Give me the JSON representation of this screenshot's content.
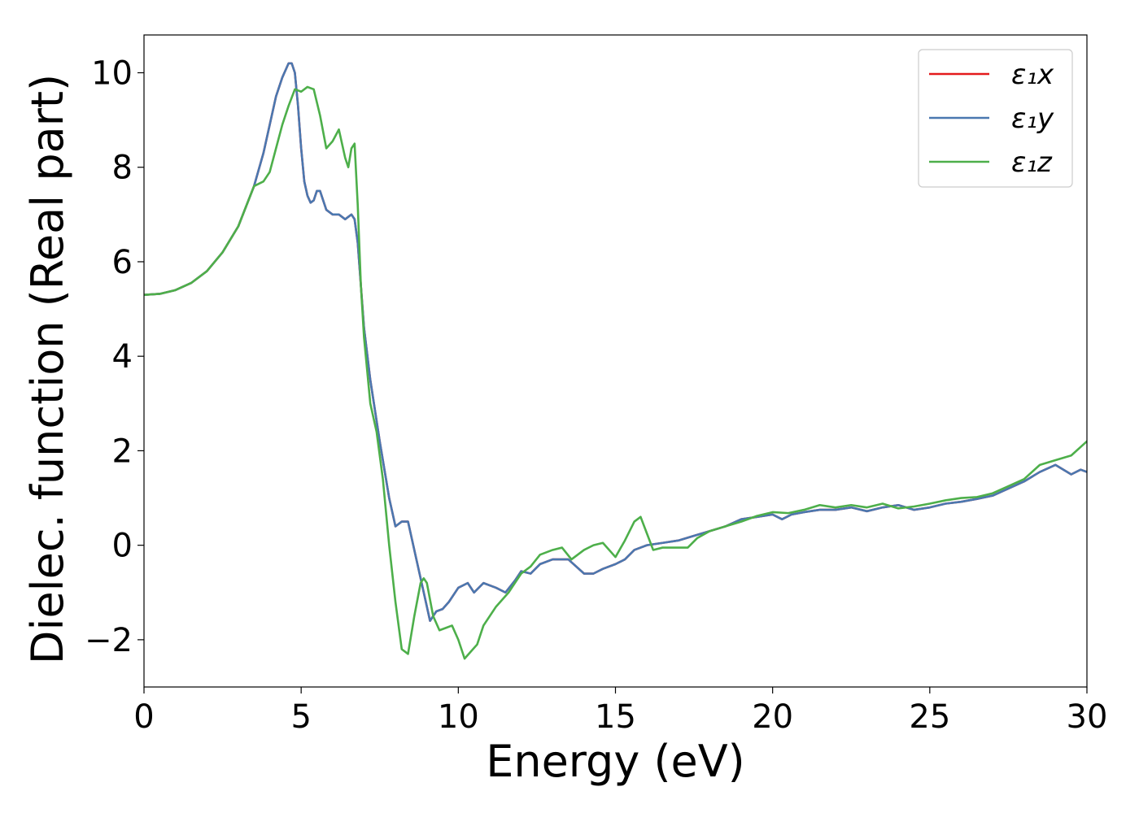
{
  "chart_data": {
    "type": "line",
    "title": "",
    "xlabel": "Energy (eV)",
    "ylabel": "Dielec. function (Real part)",
    "xlim": [
      0,
      30
    ],
    "ylim": [
      -3,
      10.8
    ],
    "xticks": [
      0,
      5,
      10,
      15,
      20,
      25,
      30
    ],
    "yticks": [
      -2,
      0,
      2,
      4,
      6,
      8,
      10
    ],
    "xtick_labels": [
      "0",
      "5",
      "10",
      "15",
      "20",
      "25",
      "30"
    ],
    "ytick_labels": [
      "−2",
      "0",
      "2",
      "4",
      "6",
      "8",
      "10"
    ],
    "grid": false,
    "legend_position": "top-right",
    "series": [
      {
        "name": "ε₁x",
        "color": "#e41a1c",
        "x": [
          0,
          0.5,
          1,
          1.5,
          2,
          2.5,
          3,
          3.5,
          3.8,
          4,
          4.2,
          4.4,
          4.6,
          4.7,
          4.8,
          4.9,
          5,
          5.1,
          5.2,
          5.3,
          5.4,
          5.5,
          5.6,
          5.7,
          5.8,
          6,
          6.2,
          6.4,
          6.6,
          6.7,
          6.8,
          7,
          7.2,
          7.5,
          7.8,
          8,
          8.2,
          8.4,
          8.5,
          8.7,
          8.9,
          9.1,
          9.3,
          9.5,
          9.7,
          10,
          10.3,
          10.5,
          10.8,
          11.2,
          11.5,
          11.8,
          12,
          12.3,
          12.6,
          13,
          13.5,
          14,
          14.3,
          14.6,
          15,
          15.3,
          15.6,
          16,
          16.5,
          17,
          17.5,
          18,
          18.5,
          19,
          19.5,
          20,
          20.3,
          20.6,
          21,
          21.5,
          22,
          22.5,
          23,
          23.5,
          24,
          24.5,
          25,
          25.5,
          26,
          26.5,
          27,
          27.5,
          28,
          28.5,
          29,
          29.5,
          29.8,
          30
        ],
        "y": [
          5.3,
          5.32,
          5.4,
          5.55,
          5.8,
          6.2,
          6.75,
          7.6,
          8.3,
          8.9,
          9.5,
          9.9,
          10.2,
          10.2,
          10.0,
          9.3,
          8.4,
          7.7,
          7.4,
          7.25,
          7.3,
          7.5,
          7.5,
          7.3,
          7.1,
          7.0,
          7.0,
          6.9,
          7.0,
          6.9,
          6.4,
          4.6,
          3.5,
          2.2,
          1.0,
          0.4,
          0.5,
          0.5,
          0.2,
          -0.4,
          -1.0,
          -1.6,
          -1.4,
          -1.35,
          -1.2,
          -0.9,
          -0.8,
          -1.0,
          -0.8,
          -0.9,
          -1.0,
          -0.75,
          -0.55,
          -0.6,
          -0.4,
          -0.3,
          -0.3,
          -0.6,
          -0.6,
          -0.5,
          -0.4,
          -0.3,
          -0.1,
          0.0,
          0.05,
          0.1,
          0.2,
          0.3,
          0.4,
          0.55,
          0.6,
          0.65,
          0.55,
          0.65,
          0.7,
          0.75,
          0.75,
          0.8,
          0.72,
          0.8,
          0.85,
          0.75,
          0.8,
          0.88,
          0.92,
          0.98,
          1.05,
          1.2,
          1.35,
          1.55,
          1.7,
          1.5,
          1.6,
          1.55
        ]
      },
      {
        "name": "ε₁y",
        "color": "#4a78b0",
        "x": [
          0,
          0.5,
          1,
          1.5,
          2,
          2.5,
          3,
          3.5,
          3.8,
          4,
          4.2,
          4.4,
          4.6,
          4.7,
          4.8,
          4.9,
          5,
          5.1,
          5.2,
          5.3,
          5.4,
          5.5,
          5.6,
          5.7,
          5.8,
          6,
          6.2,
          6.4,
          6.6,
          6.7,
          6.8,
          7,
          7.2,
          7.5,
          7.8,
          8,
          8.2,
          8.4,
          8.5,
          8.7,
          8.9,
          9.1,
          9.3,
          9.5,
          9.7,
          10,
          10.3,
          10.5,
          10.8,
          11.2,
          11.5,
          11.8,
          12,
          12.3,
          12.6,
          13,
          13.5,
          14,
          14.3,
          14.6,
          15,
          15.3,
          15.6,
          16,
          16.5,
          17,
          17.5,
          18,
          18.5,
          19,
          19.5,
          20,
          20.3,
          20.6,
          21,
          21.5,
          22,
          22.5,
          23,
          23.5,
          24,
          24.5,
          25,
          25.5,
          26,
          26.5,
          27,
          27.5,
          28,
          28.5,
          29,
          29.5,
          29.8,
          30
        ],
        "y": [
          5.3,
          5.32,
          5.4,
          5.55,
          5.8,
          6.2,
          6.75,
          7.6,
          8.3,
          8.9,
          9.5,
          9.9,
          10.2,
          10.2,
          10.0,
          9.3,
          8.4,
          7.7,
          7.4,
          7.25,
          7.3,
          7.5,
          7.5,
          7.3,
          7.1,
          7.0,
          7.0,
          6.9,
          7.0,
          6.9,
          6.4,
          4.6,
          3.5,
          2.2,
          1.0,
          0.4,
          0.5,
          0.5,
          0.2,
          -0.4,
          -1.0,
          -1.6,
          -1.4,
          -1.35,
          -1.2,
          -0.9,
          -0.8,
          -1.0,
          -0.8,
          -0.9,
          -1.0,
          -0.75,
          -0.55,
          -0.6,
          -0.4,
          -0.3,
          -0.3,
          -0.6,
          -0.6,
          -0.5,
          -0.4,
          -0.3,
          -0.1,
          0.0,
          0.05,
          0.1,
          0.2,
          0.3,
          0.4,
          0.55,
          0.6,
          0.65,
          0.55,
          0.65,
          0.7,
          0.75,
          0.75,
          0.8,
          0.72,
          0.8,
          0.85,
          0.75,
          0.8,
          0.88,
          0.92,
          0.98,
          1.05,
          1.2,
          1.35,
          1.55,
          1.7,
          1.5,
          1.6,
          1.55
        ]
      },
      {
        "name": "ε₁z",
        "color": "#4daf4a",
        "x": [
          0,
          0.5,
          1,
          1.5,
          2,
          2.5,
          3,
          3.5,
          3.8,
          4,
          4.2,
          4.4,
          4.6,
          4.8,
          5,
          5.2,
          5.4,
          5.6,
          5.8,
          6,
          6.2,
          6.4,
          6.5,
          6.6,
          6.7,
          6.8,
          6.9,
          7,
          7.2,
          7.4,
          7.6,
          7.8,
          8,
          8.2,
          8.4,
          8.6,
          8.8,
          8.9,
          9,
          9.2,
          9.4,
          9.6,
          9.8,
          10,
          10.2,
          10.4,
          10.6,
          10.8,
          11.2,
          11.6,
          12,
          12.3,
          12.6,
          13,
          13.3,
          13.6,
          14,
          14.3,
          14.6,
          15,
          15.3,
          15.6,
          15.8,
          16,
          16.2,
          16.5,
          17,
          17.3,
          17.6,
          18,
          18.5,
          19,
          19.5,
          20,
          20.5,
          21,
          21.5,
          22,
          22.5,
          23,
          23.5,
          24,
          24.5,
          25,
          25.5,
          26,
          26.5,
          27,
          27.5,
          28,
          28.5,
          29,
          29.5,
          30
        ],
        "y": [
          5.3,
          5.32,
          5.4,
          5.55,
          5.8,
          6.2,
          6.75,
          7.6,
          7.7,
          7.9,
          8.4,
          8.9,
          9.3,
          9.65,
          9.6,
          9.7,
          9.65,
          9.1,
          8.4,
          8.55,
          8.8,
          8.2,
          8.0,
          8.4,
          8.5,
          7.2,
          5.5,
          4.4,
          3.0,
          2.4,
          1.4,
          0.0,
          -1.2,
          -2.2,
          -2.3,
          -1.5,
          -0.8,
          -0.7,
          -0.8,
          -1.5,
          -1.8,
          -1.75,
          -1.7,
          -2.0,
          -2.4,
          -2.25,
          -2.1,
          -1.7,
          -1.3,
          -1.0,
          -0.6,
          -0.45,
          -0.2,
          -0.1,
          -0.05,
          -0.3,
          -0.1,
          0.0,
          0.05,
          -0.25,
          0.1,
          0.5,
          0.6,
          0.25,
          -0.1,
          -0.05,
          -0.05,
          -0.05,
          0.15,
          0.3,
          0.4,
          0.5,
          0.62,
          0.7,
          0.68,
          0.75,
          0.85,
          0.8,
          0.85,
          0.8,
          0.88,
          0.78,
          0.82,
          0.88,
          0.95,
          1.0,
          1.02,
          1.1,
          1.25,
          1.4,
          1.7,
          1.8,
          1.9,
          2.2
        ]
      }
    ]
  }
}
